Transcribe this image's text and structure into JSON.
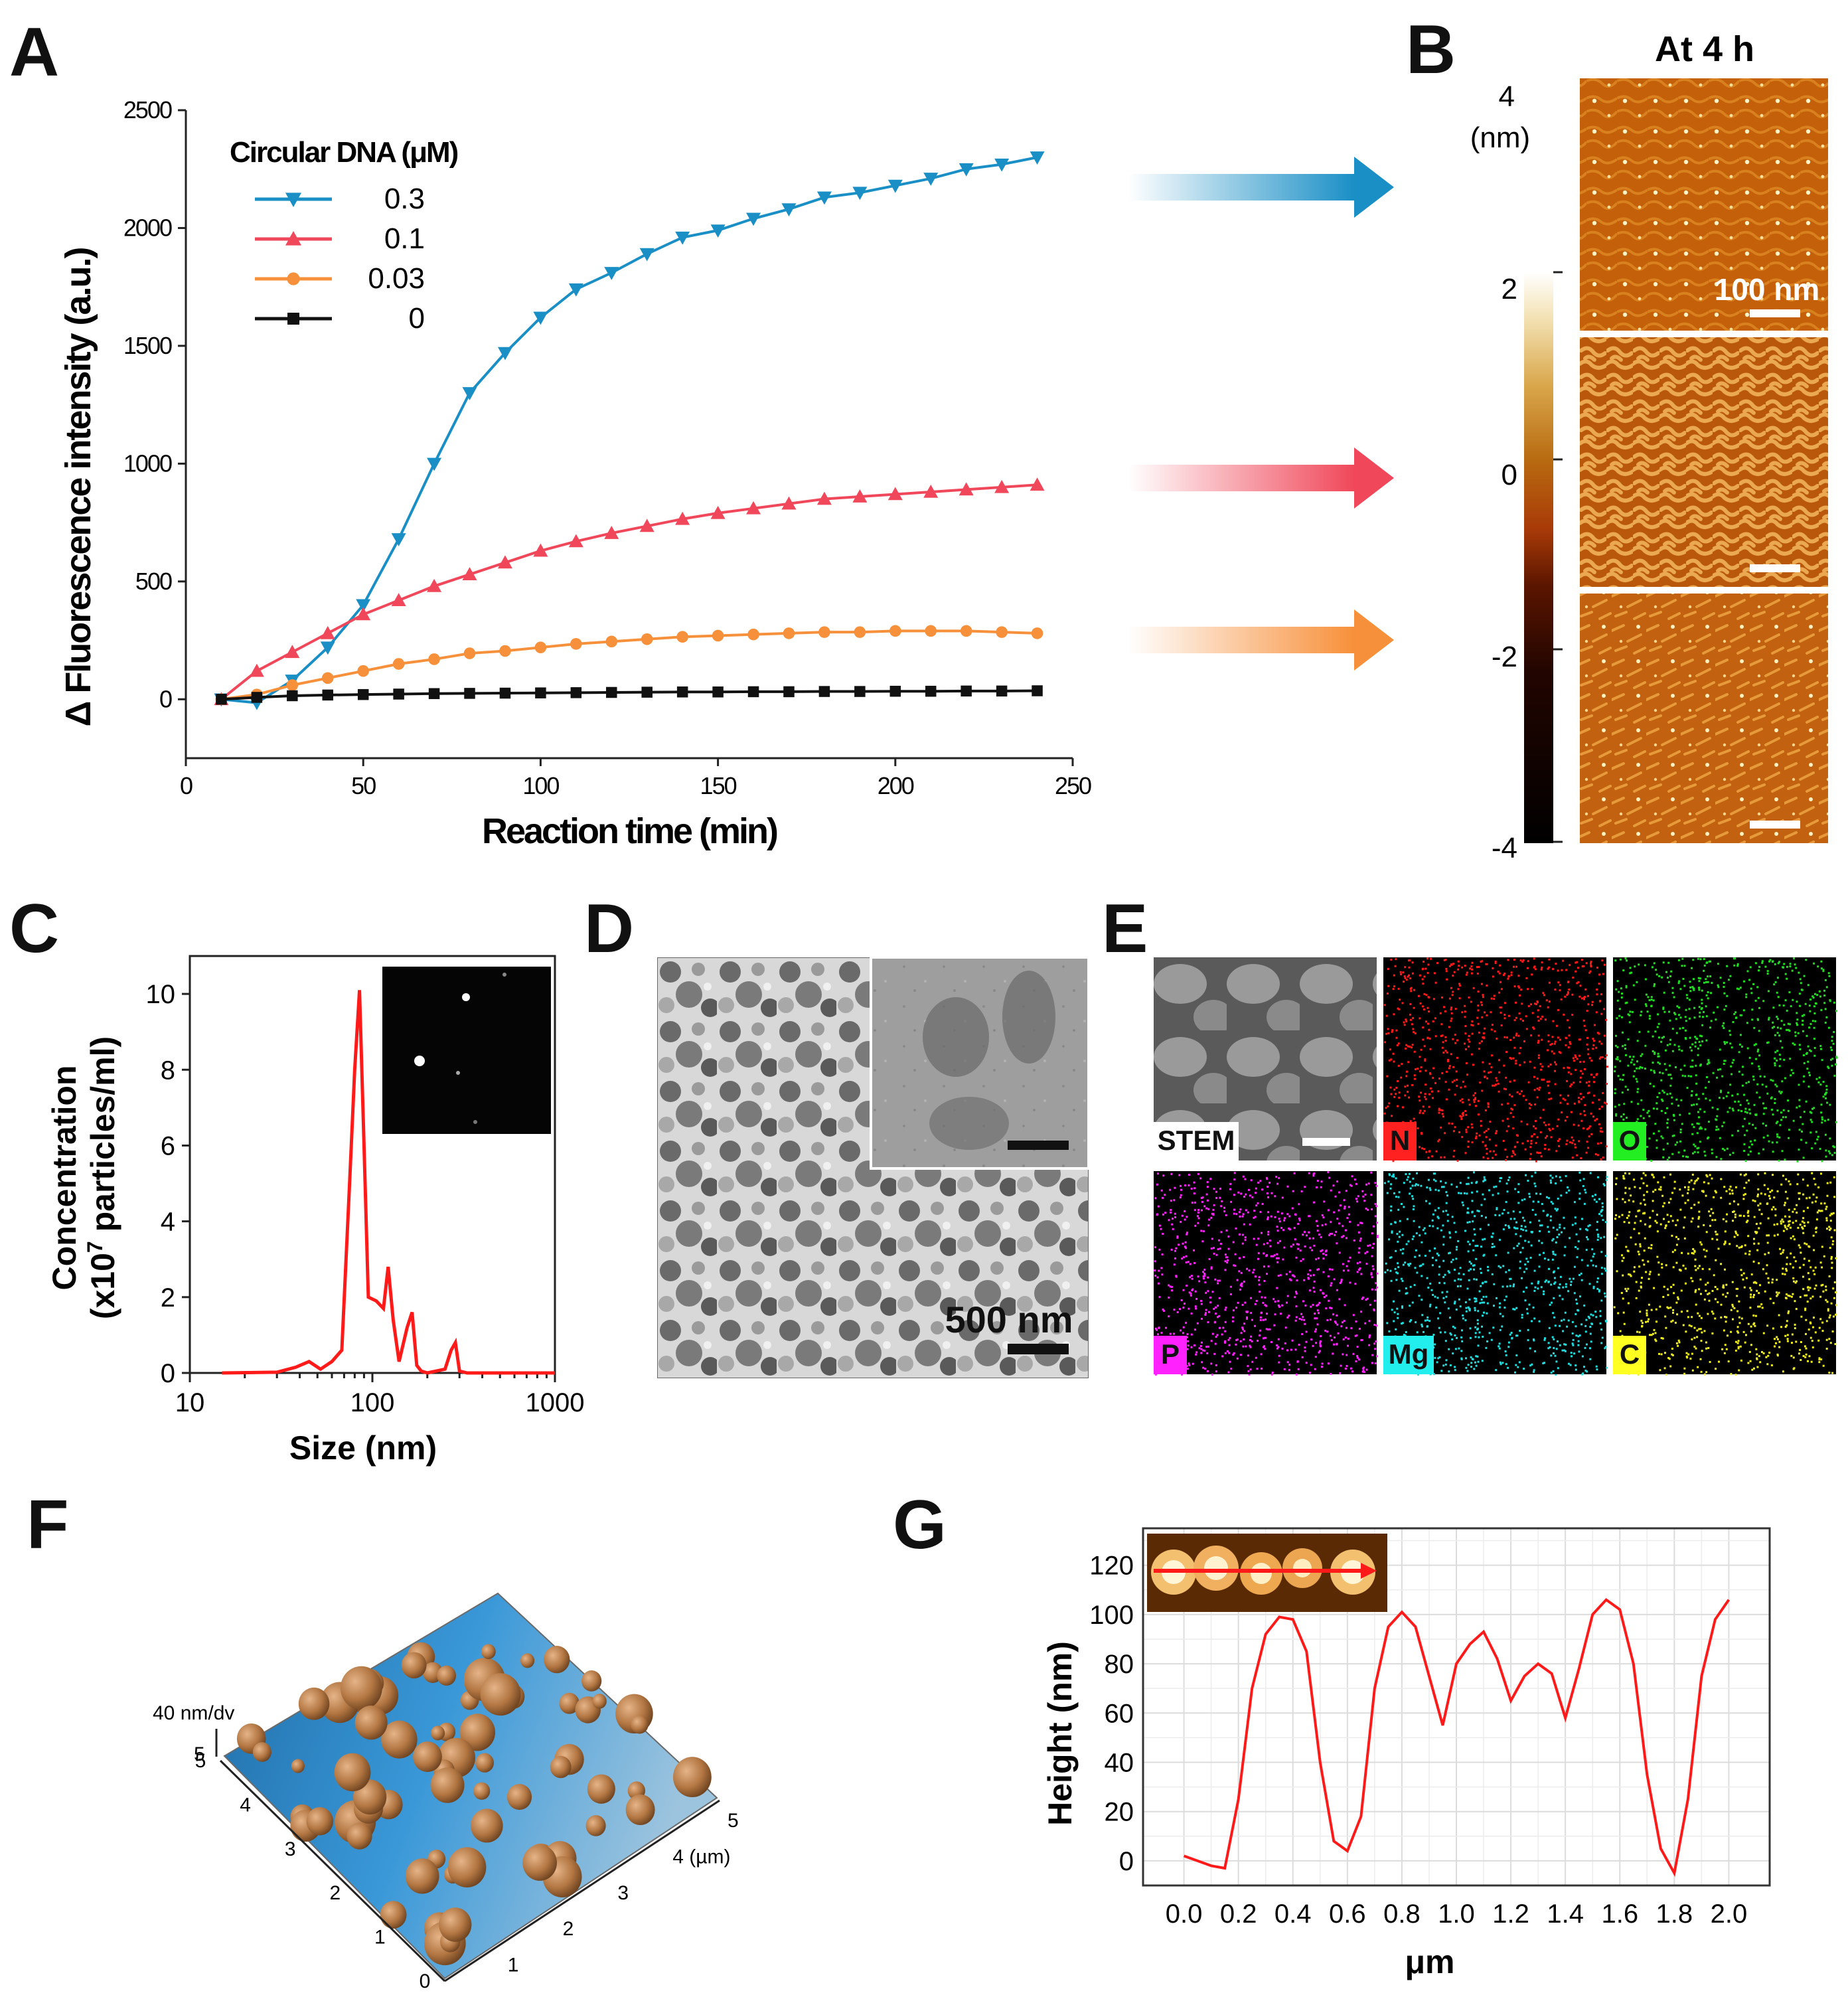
{
  "figure": {
    "panel_letters": [
      "A",
      "B",
      "C",
      "D",
      "E",
      "F",
      "G"
    ]
  },
  "panel_b": {
    "title": "At 4 h",
    "unit_label_top": "4",
    "unit_label": "(nm)",
    "colorbar_ticks": [
      "2",
      "0",
      "-2",
      "-4"
    ],
    "scalebar_label": "100 nm",
    "arrow_colors": [
      "#1a8fc6",
      "#f0485a",
      "#f7903a"
    ]
  },
  "panel_d": {
    "scalebar_label": "500 nm"
  },
  "panel_e": {
    "tiles": [
      {
        "label": "STEM",
        "color": "#8a8a8a",
        "label_bg": "#ffffff",
        "label_fg": "#111111"
      },
      {
        "label": "N",
        "color": "#ff1a1a",
        "label_bg": "#ff2020",
        "label_fg": "#111111"
      },
      {
        "label": "O",
        "color": "#22dd22",
        "label_bg": "#22ee22",
        "label_fg": "#111111"
      },
      {
        "label": "P",
        "color": "#ff22ff",
        "label_bg": "#ff22ff",
        "label_fg": "#111111"
      },
      {
        "label": "Mg",
        "color": "#22dddd",
        "label_bg": "#22eeee",
        "label_fg": "#111111"
      },
      {
        "label": "C",
        "color": "#eeee22",
        "label_bg": "#ffff22",
        "label_fg": "#111111"
      }
    ]
  },
  "panel_f": {
    "z_label": "40 nm/dv",
    "x_ticks": [
      "0",
      "1",
      "2",
      "3",
      "4 (µm)",
      "5"
    ],
    "y_ticks": [
      "0",
      "1",
      "2",
      "3",
      "4",
      "5"
    ],
    "z_tick": "5",
    "surface_color": "#2a86c8",
    "particle_color": "#b27642"
  },
  "chart_data": [
    {
      "panel": "A",
      "type": "line",
      "title": "",
      "xlabel": "Reaction time (min)",
      "ylabel": "Δ Fluorescence intensity (a.u.)",
      "xlim": [
        0,
        250
      ],
      "ylim": [
        -250,
        2500
      ],
      "xticks": [
        0,
        50,
        100,
        150,
        200,
        250
      ],
      "yticks": [
        0,
        500,
        1000,
        1500,
        2000,
        2500
      ],
      "legend_title": "Circular DNA (μM)",
      "legend_position": "top-left",
      "x": [
        10,
        20,
        30,
        40,
        50,
        60,
        70,
        80,
        90,
        100,
        110,
        120,
        130,
        140,
        150,
        160,
        170,
        180,
        190,
        200,
        210,
        220,
        230,
        240
      ],
      "series": [
        {
          "name": "0.3",
          "color": "#1a8fc6",
          "marker": "triangle-down",
          "values": [
            0,
            -15,
            80,
            220,
            400,
            680,
            1000,
            1300,
            1470,
            1620,
            1740,
            1810,
            1890,
            1960,
            1990,
            2040,
            2080,
            2130,
            2150,
            2180,
            2210,
            2250,
            2270,
            2300
          ]
        },
        {
          "name": "0.1",
          "color": "#f0485a",
          "marker": "triangle-up",
          "values": [
            0,
            120,
            200,
            280,
            360,
            420,
            480,
            530,
            580,
            630,
            670,
            705,
            735,
            765,
            790,
            810,
            830,
            850,
            860,
            870,
            880,
            890,
            900,
            910
          ]
        },
        {
          "name": "0.03",
          "color": "#f7903a",
          "marker": "circle",
          "values": [
            0,
            20,
            60,
            90,
            120,
            150,
            170,
            195,
            205,
            220,
            235,
            245,
            255,
            265,
            270,
            275,
            280,
            285,
            285,
            290,
            290,
            290,
            285,
            280
          ]
        },
        {
          "name": "0",
          "color": "#111111",
          "marker": "square",
          "values": [
            0,
            8,
            15,
            18,
            20,
            22,
            24,
            25,
            26,
            27,
            28,
            29,
            30,
            31,
            31,
            32,
            32,
            33,
            33,
            34,
            34,
            35,
            35,
            36
          ]
        }
      ]
    },
    {
      "panel": "C",
      "type": "line",
      "title": "",
      "xlabel": "Size (nm)",
      "ylabel": "Concentration (x10⁷ particles/ml)",
      "ylabel_line1": "Concentration",
      "ylabel_line2": "(x10",
      "ylabel_sup": "7",
      "ylabel_line2_rest": " particles/ml)",
      "xscale": "log",
      "xlim": [
        10,
        1000
      ],
      "ylim": [
        0,
        11
      ],
      "xticks": [
        "10",
        "100",
        "1000"
      ],
      "yticks": [
        "0",
        "2",
        "4",
        "6",
        "8",
        "10"
      ],
      "color": "#ff1a1a",
      "x": [
        15,
        30,
        38,
        45,
        52,
        60,
        68,
        75,
        80,
        85,
        90,
        95,
        105,
        115,
        122,
        130,
        140,
        155,
        165,
        175,
        185,
        200,
        250,
        270,
        285,
        300,
        330,
        400,
        1000
      ],
      "y": [
        0,
        0.02,
        0.15,
        0.3,
        0.1,
        0.3,
        0.6,
        5.0,
        8.0,
        10.1,
        6.0,
        2.0,
        1.9,
        1.7,
        2.8,
        1.4,
        0.3,
        1.2,
        1.6,
        0.2,
        0.05,
        0,
        0.1,
        0.6,
        0.8,
        0.05,
        0,
        0,
        0
      ]
    },
    {
      "panel": "G",
      "type": "line",
      "title": "",
      "xlabel": "μm",
      "ylabel": "Height (nm)",
      "xlim": [
        -0.15,
        2.15
      ],
      "ylim": [
        -10,
        135
      ],
      "xticks": [
        "0.0",
        "0.2",
        "0.4",
        "0.6",
        "0.8",
        "1.0",
        "1.2",
        "1.4",
        "1.6",
        "1.8",
        "2.0"
      ],
      "yticks": [
        "0",
        "20",
        "40",
        "60",
        "80",
        "100",
        "120"
      ],
      "color": "#ff1a1a",
      "x": [
        0,
        0.05,
        0.1,
        0.15,
        0.2,
        0.25,
        0.3,
        0.35,
        0.4,
        0.45,
        0.5,
        0.55,
        0.6,
        0.65,
        0.7,
        0.75,
        0.8,
        0.85,
        0.9,
        0.95,
        1.0,
        1.05,
        1.1,
        1.15,
        1.2,
        1.25,
        1.3,
        1.35,
        1.4,
        1.45,
        1.5,
        1.55,
        1.6,
        1.65,
        1.7,
        1.75,
        1.8,
        1.85,
        1.9,
        1.95,
        2.0
      ],
      "y": [
        2,
        0,
        -2,
        -3,
        25,
        70,
        92,
        99,
        98,
        85,
        40,
        8,
        4,
        18,
        70,
        95,
        101,
        95,
        75,
        55,
        80,
        88,
        93,
        82,
        65,
        75,
        80,
        76,
        58,
        78,
        100,
        106,
        102,
        80,
        35,
        5,
        -5,
        25,
        75,
        98,
        106
      ]
    }
  ]
}
